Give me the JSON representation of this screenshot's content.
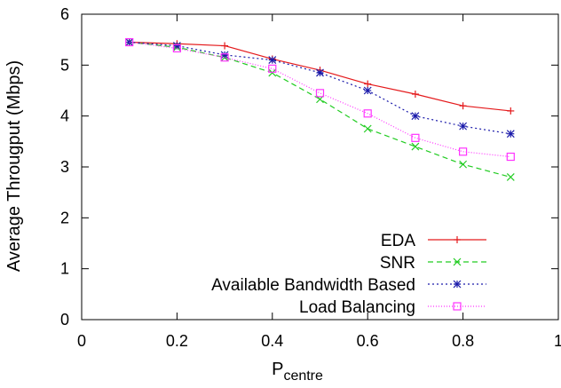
{
  "chart_data": {
    "type": "line",
    "title": "",
    "xlabel_main": "P",
    "xlabel_sub": "centre",
    "ylabel": "Average Througput (Mbps)",
    "xlim": [
      0,
      1
    ],
    "ylim": [
      0,
      6
    ],
    "xticks": [
      0,
      0.2,
      0.4,
      0.6,
      0.8,
      1
    ],
    "xtick_labels": [
      "0",
      "0.2",
      "0.4",
      "0.6",
      "0.8",
      "1"
    ],
    "yticks": [
      0,
      1,
      2,
      3,
      4,
      5,
      6
    ],
    "ytick_labels": [
      "0",
      "1",
      "2",
      "3",
      "4",
      "5",
      "6"
    ],
    "grid": false,
    "legend_position": "bottom-right",
    "x": [
      0.1,
      0.2,
      0.3,
      0.4,
      0.5,
      0.6,
      0.7,
      0.8,
      0.9
    ],
    "series": [
      {
        "name": "EDA",
        "color": "#e41a1c",
        "dash": "",
        "marker": "plus",
        "values": [
          5.45,
          5.42,
          5.38,
          5.12,
          4.9,
          4.63,
          4.43,
          4.2,
          4.1
        ]
      },
      {
        "name": "SNR",
        "color": "#22cc22",
        "dash": "6,4",
        "marker": "cross",
        "values": [
          5.45,
          5.35,
          5.15,
          4.85,
          4.33,
          3.75,
          3.4,
          3.05,
          2.8
        ]
      },
      {
        "name": "Available Bandwidth Based",
        "color": "#1a1aaa",
        "dash": "2,3",
        "marker": "asterisk",
        "values": [
          5.45,
          5.38,
          5.2,
          5.1,
          4.85,
          4.5,
          4.0,
          3.8,
          3.65
        ]
      },
      {
        "name": "Load Balancing",
        "color": "#ff33ff",
        "dash": "1,2",
        "marker": "square",
        "values": [
          5.45,
          5.33,
          5.15,
          4.93,
          4.45,
          4.05,
          3.57,
          3.3,
          3.2
        ]
      }
    ]
  }
}
